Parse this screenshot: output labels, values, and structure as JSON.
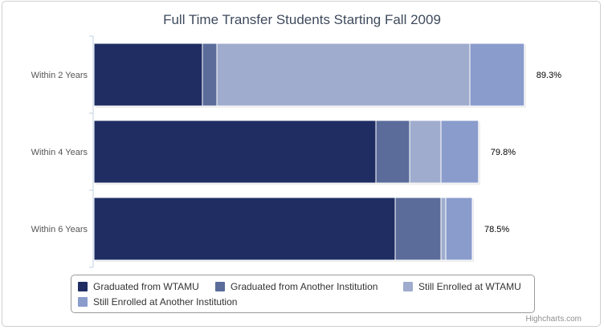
{
  "chart_data": {
    "type": "bar",
    "orientation": "horizontal",
    "stacked": true,
    "title": "Full Time Transfer Students Starting Fall 2009",
    "categories": [
      "Within 2 Years",
      "Within 4 Years",
      "Within 6 Years"
    ],
    "series": [
      {
        "name": "Graduated from WTAMU",
        "color": "#1f2d63",
        "values": [
          22.5,
          58.5,
          62.5
        ]
      },
      {
        "name": "Graduated from Another Institution",
        "color": "#5b6c9b",
        "values": [
          3.0,
          7.0,
          9.5
        ]
      },
      {
        "name": "Still Enrolled at WTAMU",
        "color": "#9facce",
        "values": [
          52.5,
          6.5,
          1.0
        ]
      },
      {
        "name": "Still Enrolled at Another Institution",
        "color": "#8a9ccc",
        "values": [
          11.3,
          7.8,
          5.5
        ]
      }
    ],
    "totals": [
      89.3,
      79.8,
      78.5
    ],
    "total_labels": [
      "89.3%",
      "79.8%",
      "78.5%"
    ],
    "xlim": [
      0,
      100
    ],
    "grid": false,
    "legend_position": "bottom"
  },
  "credits": "Highcharts.com"
}
